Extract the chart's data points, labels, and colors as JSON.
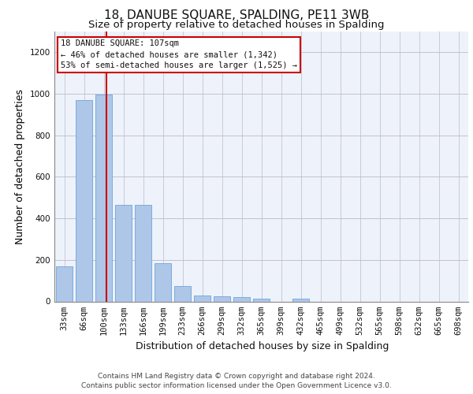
{
  "title": "18, DANUBE SQUARE, SPALDING, PE11 3WB",
  "subtitle": "Size of property relative to detached houses in Spalding",
  "xlabel": "Distribution of detached houses by size in Spalding",
  "ylabel": "Number of detached properties",
  "categories": [
    "33sqm",
    "66sqm",
    "100sqm",
    "133sqm",
    "166sqm",
    "199sqm",
    "233sqm",
    "266sqm",
    "299sqm",
    "332sqm",
    "365sqm",
    "399sqm",
    "432sqm",
    "465sqm",
    "499sqm",
    "532sqm",
    "565sqm",
    "598sqm",
    "632sqm",
    "665sqm",
    "698sqm"
  ],
  "values": [
    170,
    970,
    995,
    465,
    465,
    185,
    75,
    30,
    25,
    20,
    12,
    0,
    13,
    0,
    0,
    0,
    0,
    0,
    0,
    0,
    0
  ],
  "bar_color": "#aec6e8",
  "bar_edge_color": "#5b9bd5",
  "highlight_bar_index": 2,
  "highlight_color": "#cc0000",
  "ylim": [
    0,
    1300
  ],
  "yticks": [
    0,
    200,
    400,
    600,
    800,
    1000,
    1200
  ],
  "annotation_text": "18 DANUBE SQUARE: 107sqm\n← 46% of detached houses are smaller (1,342)\n53% of semi-detached houses are larger (1,525) →",
  "annotation_box_color": "#cc0000",
  "footer_line1": "Contains HM Land Registry data © Crown copyright and database right 2024.",
  "footer_line2": "Contains public sector information licensed under the Open Government Licence v3.0.",
  "bg_color": "#eef2fa",
  "grid_color": "#bbbbcc",
  "title_fontsize": 11,
  "subtitle_fontsize": 9.5,
  "axis_label_fontsize": 9,
  "tick_fontsize": 7.5,
  "annotation_fontsize": 7.5,
  "footer_fontsize": 6.5
}
